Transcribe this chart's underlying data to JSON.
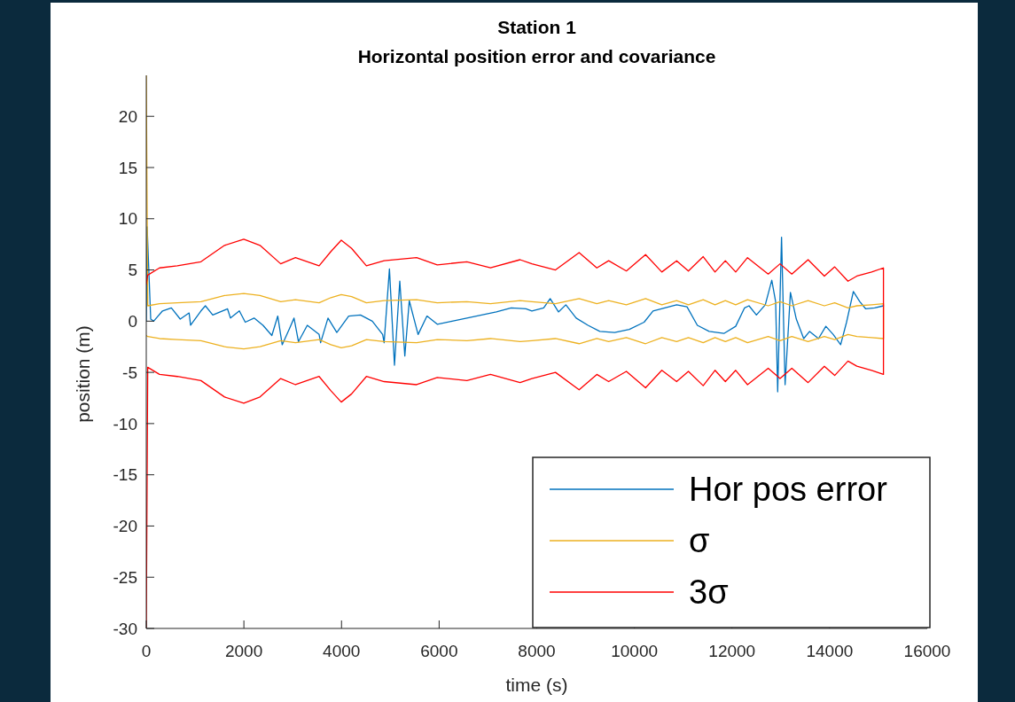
{
  "chart_data": {
    "type": "line",
    "title": "Station 1",
    "subtitle": "Horizontal position error and covariance",
    "xlabel": "time (s)",
    "ylabel": "position (m)",
    "xlim": [
      0,
      16000
    ],
    "xticks": [
      0,
      2000,
      4000,
      6000,
      8000,
      10000,
      12000,
      14000,
      16000
    ],
    "ylim": [
      -30,
      24
    ],
    "yticks": [
      -30,
      -25,
      -20,
      -15,
      -10,
      -5,
      0,
      5,
      10,
      15,
      20
    ],
    "legend": "bottom right",
    "grid": false,
    "series": [
      {
        "name": "Hor pos error",
        "color": "#0072bd",
        "x": [
          0,
          18,
          91,
          151,
          333,
          514,
          696,
          878,
          908,
          1120,
          1211,
          1362,
          1665,
          1725,
          1907,
          2028,
          2209,
          2391,
          2573,
          2694,
          2785,
          2936,
          3027,
          3118,
          3299,
          3541,
          3572,
          3723,
          3904,
          4147,
          4389,
          4631,
          4843,
          4873,
          4982,
          5085,
          5194,
          5297,
          5388,
          5569,
          5751,
          5962,
          6265,
          6568,
          6870,
          7173,
          7476,
          7779,
          7900,
          8142,
          8275,
          8445,
          8596,
          8808,
          9050,
          9292,
          9595,
          9897,
          10200,
          10382,
          10624,
          10866,
          11078,
          11290,
          11532,
          11834,
          12076,
          12258,
          12349,
          12500,
          12682,
          12815,
          12894,
          12936,
          13015,
          13088,
          13197,
          13318,
          13469,
          13590,
          13772,
          13923,
          14074,
          14226,
          14347,
          14486,
          14619,
          14740,
          14922,
          15103
        ],
        "values": [
          0,
          9.2,
          0.2,
          0.0,
          1.0,
          1.3,
          0.2,
          0.8,
          -0.4,
          1.0,
          1.5,
          0.6,
          1.2,
          0.3,
          1.0,
          -0.1,
          0.3,
          -0.4,
          -1.4,
          0.5,
          -2.3,
          -0.7,
          0.3,
          -2.0,
          -0.4,
          -1.3,
          -2.1,
          0.3,
          -1.1,
          0.5,
          0.6,
          0.0,
          -1.3,
          -2.1,
          5.1,
          -4.3,
          3.9,
          -3.4,
          2.0,
          -1.3,
          0.5,
          -0.3,
          0.0,
          0.3,
          0.6,
          0.9,
          1.3,
          1.2,
          1.0,
          1.3,
          2.2,
          0.9,
          1.6,
          0.3,
          -0.4,
          -1.0,
          -1.1,
          -0.8,
          -0.1,
          1.0,
          1.3,
          1.6,
          1.4,
          -0.4,
          -1.0,
          -1.2,
          -0.5,
          1.3,
          1.5,
          0.6,
          1.6,
          4.0,
          1.9,
          -6.9,
          8.2,
          -6.2,
          2.8,
          0.2,
          -1.7,
          -1.0,
          -1.7,
          -0.5,
          -1.3,
          -2.3,
          -0.1,
          2.9,
          1.9,
          1.2,
          1.3,
          1.5
        ]
      },
      {
        "name": "σ",
        "color": "#edb120",
        "x": [
          0,
          30,
          272,
          636,
          1120,
          1604,
          1998,
          2330,
          2754,
          3057,
          3541,
          3783,
          3995,
          4207,
          4510,
          4873,
          5539,
          5962,
          6568,
          7052,
          7658,
          7900,
          8384,
          8868,
          9231,
          9473,
          9836,
          10229,
          10562,
          10865,
          11107,
          11410,
          11652,
          11864,
          12076,
          12318,
          12742,
          12984,
          13226,
          13559,
          13892,
          14104,
          14376,
          14558,
          14861,
          15103,
          15103,
          14861,
          14558,
          14376,
          14104,
          13892,
          13559,
          13226,
          12984,
          12742,
          12318,
          12076,
          11864,
          11652,
          11410,
          11107,
          10865,
          10562,
          10229,
          9836,
          9473,
          9231,
          8868,
          8384,
          7900,
          7658,
          7052,
          6568,
          5962,
          5539,
          4873,
          4510,
          4207,
          3995,
          3783,
          3541,
          3057,
          2754,
          2330,
          1998,
          1604,
          1120,
          636,
          272,
          30,
          0
        ],
        "values": [
          24,
          1.5,
          1.7,
          1.8,
          1.9,
          2.5,
          2.7,
          2.5,
          1.9,
          2.1,
          1.8,
          2.3,
          2.6,
          2.4,
          1.8,
          2.0,
          2.1,
          1.8,
          1.9,
          1.7,
          2.0,
          1.9,
          1.7,
          2.2,
          1.7,
          2.0,
          1.6,
          2.2,
          1.6,
          2.0,
          1.6,
          2.1,
          1.6,
          2.0,
          1.6,
          2.1,
          1.5,
          1.9,
          1.5,
          2.0,
          1.5,
          1.8,
          1.3,
          1.5,
          1.6,
          1.7,
          -1.7,
          -1.6,
          -1.5,
          -1.3,
          -1.8,
          -1.5,
          -2.0,
          -1.5,
          -1.9,
          -1.5,
          -2.1,
          -1.6,
          -2.0,
          -1.6,
          -2.1,
          -1.6,
          -2.0,
          -1.6,
          -2.2,
          -1.6,
          -2.0,
          -1.7,
          -2.2,
          -1.7,
          -1.9,
          -2.0,
          -1.7,
          -1.9,
          -1.8,
          -2.1,
          -2.0,
          -1.8,
          -2.4,
          -2.6,
          -2.3,
          -1.8,
          -2.1,
          -1.9,
          -2.5,
          -2.7,
          -2.5,
          -1.9,
          -1.8,
          -1.7,
          -1.5,
          -1.4
        ]
      },
      {
        "name": "3σ",
        "color": "#ff0000",
        "x": [
          0,
          30,
          272,
          636,
          1120,
          1604,
          1998,
          2330,
          2754,
          3057,
          3541,
          3783,
          3995,
          4207,
          4510,
          4873,
          5539,
          5962,
          6568,
          7052,
          7658,
          7900,
          8384,
          8868,
          9231,
          9473,
          9836,
          10229,
          10562,
          10865,
          11107,
          11410,
          11652,
          11864,
          12076,
          12318,
          12742,
          12984,
          13226,
          13559,
          13892,
          14104,
          14376,
          14558,
          14861,
          15103,
          15103,
          14861,
          14558,
          14376,
          14104,
          13892,
          13559,
          13226,
          12984,
          12742,
          12318,
          12076,
          11864,
          11652,
          11410,
          11107,
          10865,
          10562,
          10229,
          9836,
          9473,
          9231,
          8868,
          8384,
          7900,
          7658,
          7052,
          6568,
          5962,
          5539,
          4873,
          4510,
          4207,
          3995,
          3783,
          3541,
          3057,
          2754,
          2330,
          1998,
          1604,
          1120,
          636,
          272,
          30,
          0
        ],
        "values": [
          3.6,
          4.5,
          5.2,
          5.4,
          5.8,
          7.4,
          8.0,
          7.4,
          5.6,
          6.2,
          5.4,
          6.8,
          7.9,
          7.1,
          5.4,
          5.9,
          6.2,
          5.5,
          5.8,
          5.2,
          6.0,
          5.6,
          5.0,
          6.7,
          5.2,
          5.9,
          4.9,
          6.5,
          4.8,
          5.9,
          4.9,
          6.3,
          4.8,
          5.9,
          4.8,
          6.2,
          4.6,
          5.6,
          4.6,
          6.0,
          4.4,
          5.3,
          3.9,
          4.4,
          4.8,
          5.2,
          -5.2,
          -4.8,
          -4.4,
          -3.9,
          -5.3,
          -4.4,
          -6.0,
          -4.6,
          -5.6,
          -4.6,
          -6.2,
          -4.8,
          -5.9,
          -4.8,
          -6.3,
          -4.9,
          -5.9,
          -4.8,
          -6.5,
          -4.9,
          -5.9,
          -5.2,
          -6.7,
          -5.0,
          -5.6,
          -6.0,
          -5.2,
          -5.8,
          -5.5,
          -6.2,
          -5.9,
          -5.4,
          -7.1,
          -7.9,
          -6.8,
          -5.4,
          -6.2,
          -5.6,
          -7.4,
          -8.0,
          -7.4,
          -5.8,
          -5.4,
          -5.2,
          -4.5,
          -30
        ]
      }
    ]
  }
}
